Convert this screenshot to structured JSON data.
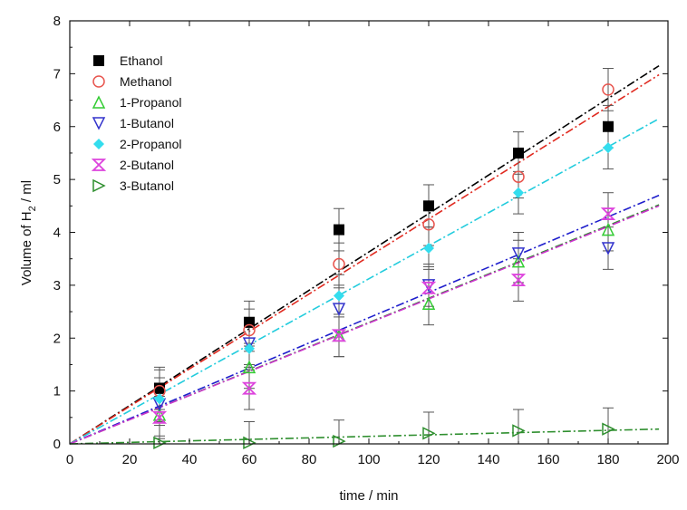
{
  "chart_data": {
    "type": "scatter",
    "xlabel": "time / min",
    "ylabel": {
      "prefix": "Volume of H",
      "sub": "2",
      "suffix": " / ml"
    },
    "xlim": [
      0,
      200
    ],
    "ylim": [
      0,
      8
    ],
    "xticks": [
      0,
      20,
      40,
      60,
      80,
      100,
      120,
      140,
      160,
      180,
      200
    ],
    "yticks": [
      0,
      1,
      2,
      3,
      4,
      5,
      6,
      7,
      8
    ],
    "grid": false,
    "legend_position": "top-left",
    "series": [
      {
        "name": "Ethanol",
        "marker": "square-filled",
        "color": "#000000",
        "line_color": "#000000",
        "x": [
          30,
          60,
          90,
          120,
          150,
          180
        ],
        "y": [
          1.05,
          2.3,
          4.05,
          4.5,
          5.5,
          6.0
        ],
        "err": [
          0.4,
          0.4,
          0.4,
          0.4,
          0.4,
          0.4
        ],
        "fit": [
          [
            0,
            0.0
          ],
          [
            197,
            7.15
          ]
        ]
      },
      {
        "name": "Methanol",
        "marker": "circle-open",
        "color": "#e8554e",
        "line_color": "#e02a20",
        "x": [
          30,
          60,
          90,
          120,
          150,
          180
        ],
        "y": [
          1.0,
          2.15,
          3.4,
          4.15,
          5.05,
          6.7
        ],
        "err": [
          0.4,
          0.4,
          0.4,
          0.4,
          0.4,
          0.4
        ],
        "fit": [
          [
            0,
            0.0
          ],
          [
            197,
            6.98
          ]
        ]
      },
      {
        "name": "1-Propanol",
        "marker": "triangle-up-open",
        "color": "#33cc33",
        "line_color": "#2e8b2e",
        "x": [
          30,
          60,
          90,
          120,
          150,
          180
        ],
        "y": [
          0.55,
          1.45,
          2.05,
          2.65,
          3.45,
          4.05
        ],
        "err": [
          0.4,
          0.4,
          0.4,
          0.4,
          0.4,
          0.4
        ],
        "fit": [
          [
            0,
            0.0
          ],
          [
            197,
            4.52
          ]
        ]
      },
      {
        "name": "1-Butanol",
        "marker": "triangle-down-open",
        "color": "#3333cc",
        "line_color": "#1f1fcc",
        "x": [
          30,
          60,
          90,
          120,
          150,
          180
        ],
        "y": [
          0.75,
          1.9,
          2.55,
          3.0,
          3.6,
          3.7
        ],
        "err": [
          0.4,
          0.4,
          0.4,
          0.4,
          0.4,
          0.4
        ],
        "fit": [
          [
            0,
            0.0
          ],
          [
            197,
            4.7
          ]
        ]
      },
      {
        "name": "2-Propanol",
        "marker": "diamond-filled",
        "color": "#33ddee",
        "line_color": "#22ccdd",
        "x": [
          30,
          60,
          90,
          120,
          150,
          180
        ],
        "y": [
          0.85,
          1.8,
          2.8,
          3.7,
          4.75,
          5.6
        ],
        "err": [
          0.4,
          0.4,
          0.4,
          0.4,
          0.4,
          0.4
        ],
        "fit": [
          [
            0,
            0.0
          ],
          [
            197,
            6.15
          ]
        ]
      },
      {
        "name": "2-Butanol",
        "marker": "bowtie",
        "color": "#dd44dd",
        "line_color": "#cc33cc",
        "x": [
          30,
          60,
          90,
          120,
          150,
          180
        ],
        "y": [
          0.5,
          1.05,
          2.05,
          2.95,
          3.1,
          4.35
        ],
        "err": [
          0.4,
          0.4,
          0.4,
          0.4,
          0.4,
          0.4
        ],
        "fit": [
          [
            0,
            0.0
          ],
          [
            197,
            4.5
          ]
        ]
      },
      {
        "name": "3-Butanol",
        "marker": "triangle-right-open",
        "color": "#2f8f2f",
        "line_color": "#2f8f2f",
        "x": [
          30,
          60,
          90,
          120,
          150,
          180
        ],
        "y": [
          0.02,
          0.02,
          0.05,
          0.2,
          0.25,
          0.28
        ],
        "err": [
          0.4,
          0.4,
          0.4,
          0.4,
          0.4,
          0.4
        ],
        "fit": [
          [
            0,
            0.0
          ],
          [
            197,
            0.28
          ]
        ]
      }
    ]
  }
}
